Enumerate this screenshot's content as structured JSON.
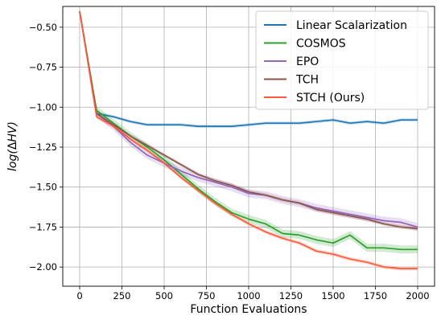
{
  "chart_data": {
    "type": "line",
    "xlabel": "Function Evaluations",
    "ylabel_prefix": "log(",
    "ylabel_delta": "Δ",
    "ylabel_var": "HV",
    "ylabel_suffix": ")",
    "xlim": [
      -100,
      2100
    ],
    "ylim": [
      -2.12,
      -0.37
    ],
    "xticks": [
      0,
      250,
      500,
      750,
      1000,
      1250,
      1500,
      1750,
      2000
    ],
    "xtick_labels": [
      "0",
      "250",
      "500",
      "750",
      "1000",
      "1250",
      "1500",
      "1750",
      "2000"
    ],
    "yticks": [
      -0.5,
      -0.75,
      -1.0,
      -1.25,
      -1.5,
      -1.75,
      -2.0
    ],
    "ytick_labels": [
      "−0.50",
      "−0.75",
      "−1.00",
      "−1.25",
      "−1.50",
      "−1.75",
      "−2.00"
    ],
    "grid": true,
    "legend_position": "top-right",
    "x": [
      0,
      100,
      200,
      300,
      400,
      500,
      600,
      700,
      800,
      900,
      1000,
      1100,
      1200,
      1300,
      1400,
      1500,
      1600,
      1700,
      1800,
      1900,
      2000
    ],
    "series": [
      {
        "name": "Linear Scalarization",
        "color": "#1f77b4",
        "values": [
          -0.4,
          -1.04,
          -1.06,
          -1.09,
          -1.11,
          -1.11,
          -1.11,
          -1.12,
          -1.12,
          -1.12,
          -1.11,
          -1.1,
          -1.1,
          -1.1,
          -1.09,
          -1.08,
          -1.1,
          -1.09,
          -1.1,
          -1.08,
          -1.08
        ],
        "band": 0.01
      },
      {
        "name": "COSMOS",
        "color": "#2ca02c",
        "values": [
          -0.4,
          -1.02,
          -1.1,
          -1.18,
          -1.25,
          -1.33,
          -1.42,
          -1.51,
          -1.59,
          -1.66,
          -1.7,
          -1.73,
          -1.79,
          -1.8,
          -1.83,
          -1.85,
          -1.8,
          -1.88,
          -1.88,
          -1.89,
          -1.89
        ],
        "band": 0.025
      },
      {
        "name": "EPO",
        "color": "#9467bd",
        "values": [
          -0.4,
          -1.04,
          -1.12,
          -1.22,
          -1.3,
          -1.35,
          -1.4,
          -1.44,
          -1.47,
          -1.5,
          -1.54,
          -1.55,
          -1.58,
          -1.6,
          -1.63,
          -1.65,
          -1.67,
          -1.69,
          -1.71,
          -1.72,
          -1.75
        ],
        "band": 0.025
      },
      {
        "name": "TCH",
        "color": "#8c564b",
        "values": [
          -0.4,
          -1.04,
          -1.11,
          -1.18,
          -1.24,
          -1.3,
          -1.36,
          -1.42,
          -1.46,
          -1.49,
          -1.53,
          -1.55,
          -1.58,
          -1.6,
          -1.64,
          -1.66,
          -1.68,
          -1.7,
          -1.73,
          -1.75,
          -1.76
        ],
        "band": 0.012
      },
      {
        "name": "STCH (Ours)",
        "color": "#ff5a3c",
        "values": [
          -0.4,
          -1.06,
          -1.12,
          -1.2,
          -1.27,
          -1.35,
          -1.44,
          -1.52,
          -1.6,
          -1.67,
          -1.73,
          -1.78,
          -1.82,
          -1.85,
          -1.9,
          -1.92,
          -1.95,
          -1.97,
          -2.0,
          -2.01,
          -2.01
        ],
        "band": 0.012
      }
    ]
  }
}
